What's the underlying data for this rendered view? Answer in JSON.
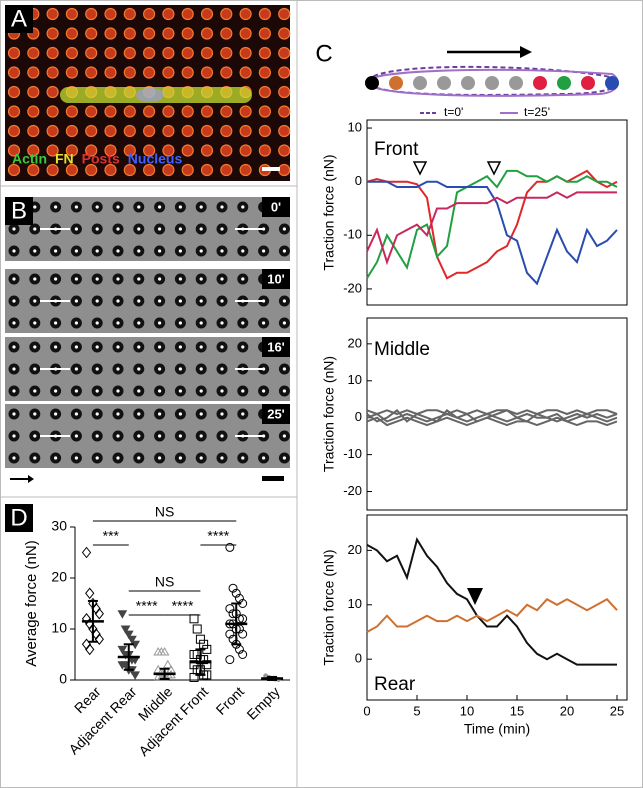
{
  "panels": {
    "a": {
      "label": "A",
      "channels": [
        {
          "name": "Actin",
          "color": "#3cc83c"
        },
        {
          "name": "FN",
          "color": "#e8e02a"
        },
        {
          "name": "Posts",
          "color": "#e03030"
        },
        {
          "name": "Nucleus",
          "color": "#4060ff"
        }
      ]
    },
    "b": {
      "label": "B",
      "times": [
        "0'",
        "10'",
        "16'",
        "25'"
      ]
    },
    "c": {
      "label": "C",
      "legend": [
        {
          "name": "t=0'",
          "color": "#6a3fa0",
          "dashed": true
        },
        {
          "name": "t=25'",
          "color": "#a070c8",
          "dashed": false
        }
      ]
    },
    "d": {
      "label": "D"
    }
  },
  "chart_data": [
    {
      "type": "line",
      "title": "Front",
      "y_label": "Traction force (nN)",
      "x": [
        0,
        1,
        2,
        3,
        4,
        5,
        6,
        7,
        8,
        9,
        10,
        11,
        12,
        13,
        14,
        15,
        16,
        17,
        18,
        19,
        20,
        21,
        22,
        23,
        24,
        25
      ],
      "xlim": [
        0,
        26
      ],
      "ylim": [
        -23,
        11.5
      ],
      "yticks": [
        10,
        0,
        -10,
        -20
      ],
      "series": [
        {
          "name": "red",
          "color": "#e02828",
          "values": [
            0,
            0.5,
            0,
            0,
            0,
            -0.5,
            -3,
            -14,
            -18,
            -17,
            -17,
            -16,
            -15,
            -13,
            -12,
            -8,
            -2,
            0,
            0,
            1,
            0,
            1,
            2,
            0,
            -1,
            0
          ]
        },
        {
          "name": "green",
          "color": "#20a040",
          "values": [
            -18,
            -15,
            -10,
            -13,
            -16,
            -9,
            -8,
            -14,
            -12,
            -2,
            -1,
            0,
            1,
            -1,
            2,
            2,
            1,
            1,
            0,
            1,
            0,
            0,
            1,
            0,
            0,
            -1
          ]
        },
        {
          "name": "blue",
          "color": "#2a4cb0",
          "values": [
            0,
            0,
            0,
            -1,
            -1,
            -1,
            0,
            0,
            -1,
            -1,
            -1,
            -1,
            -1,
            -4,
            -10,
            -11,
            -17,
            -19,
            -14,
            -9,
            -13,
            -15,
            -9,
            -12,
            -11,
            -9
          ]
        },
        {
          "name": "magenta",
          "color": "#c8285a",
          "values": [
            -13,
            -9,
            -15,
            -10,
            -9,
            -8,
            -10,
            -5,
            -5,
            -4,
            -4,
            -4,
            -4,
            -3,
            -4,
            -3,
            -3,
            -3,
            -3,
            -2,
            -3,
            -2,
            -2,
            -2,
            -2,
            -2
          ]
        }
      ]
    },
    {
      "type": "line",
      "title": "Middle",
      "y_label": "Traction force (nN)",
      "x": [
        0,
        1,
        2,
        3,
        4,
        5,
        6,
        7,
        8,
        9,
        10,
        11,
        12,
        13,
        14,
        15,
        16,
        17,
        18,
        19,
        20,
        21,
        22,
        23,
        24,
        25
      ],
      "xlim": [
        0,
        26
      ],
      "ylim": [
        -25,
        27
      ],
      "yticks": [
        20,
        10,
        0,
        -10,
        -20
      ],
      "series": [
        {
          "name": "g1",
          "color": "#666666",
          "values": [
            2,
            1,
            2,
            1,
            2,
            1,
            2,
            2,
            1,
            2,
            1,
            2,
            1,
            2,
            2,
            1,
            2,
            1,
            2,
            2,
            1,
            2,
            1,
            2,
            2,
            1
          ]
        },
        {
          "name": "g2",
          "color": "#666666",
          "values": [
            0,
            1,
            -1,
            0,
            1,
            0,
            -1,
            0,
            1,
            0,
            -1,
            0,
            1,
            0,
            -1,
            0,
            1,
            0,
            0,
            1,
            -1,
            0,
            1,
            0,
            -1,
            0
          ]
        },
        {
          "name": "g3",
          "color": "#666666",
          "values": [
            -1,
            0,
            -2,
            -1,
            0,
            -1,
            -2,
            -1,
            0,
            -1,
            -2,
            -1,
            0,
            -1,
            -2,
            -1,
            -1,
            -2,
            -1,
            0,
            -1,
            -2,
            -1,
            -1,
            -2,
            -1
          ]
        },
        {
          "name": "g4",
          "color": "#666666",
          "values": [
            1,
            -1,
            0,
            2,
            -1,
            1,
            0,
            -1,
            2,
            0,
            1,
            -1,
            0,
            1,
            2,
            0,
            -1,
            1,
            0,
            -1,
            0,
            1,
            0,
            1,
            0,
            1
          ]
        }
      ]
    },
    {
      "type": "line",
      "title": "Rear",
      "y_label": "Traction force (nN)",
      "x_label": "Time (min)",
      "x": [
        0,
        1,
        2,
        3,
        4,
        5,
        6,
        7,
        8,
        9,
        10,
        11,
        12,
        13,
        14,
        15,
        16,
        17,
        18,
        19,
        20,
        21,
        22,
        23,
        24,
        25
      ],
      "xlim": [
        0,
        26
      ],
      "ylim": [
        -7.5,
        26.5
      ],
      "xticks": [
        0,
        5,
        10,
        15,
        20,
        25
      ],
      "yticks": [
        20,
        10,
        0
      ],
      "series": [
        {
          "name": "black",
          "color": "#111111",
          "values": [
            21,
            20,
            18,
            19,
            15,
            22,
            19,
            17,
            14,
            12,
            11,
            8,
            6,
            6,
            8,
            6,
            3,
            1,
            0,
            1,
            0,
            -1,
            -1,
            -1,
            -1,
            -1
          ]
        },
        {
          "name": "orange",
          "color": "#d07030",
          "values": [
            5,
            6,
            8,
            6,
            6,
            7,
            8,
            7,
            7,
            8,
            7,
            8,
            7,
            8,
            9,
            8,
            10,
            9,
            11,
            10,
            11,
            10,
            9,
            10,
            11,
            9
          ]
        }
      ]
    },
    {
      "type": "dot",
      "y_label": "Average force (nN)",
      "categories": [
        "Rear",
        "Adjacent Rear",
        "Middle",
        "Adjacent Front",
        "Front",
        "Empty"
      ],
      "values": [
        11.5,
        4.5,
        1.2,
        3.5,
        11,
        0.3
      ],
      "errors": [
        4,
        2.5,
        1,
        2.5,
        4,
        0.3
      ],
      "markers": [
        "diamond",
        "triangle-down",
        "triangle-up",
        "square",
        "circle",
        "dot"
      ],
      "points": [
        [
          25,
          17,
          15,
          14,
          13,
          12,
          11,
          10,
          9,
          8,
          7,
          6
        ],
        [
          13,
          10,
          9,
          8,
          7,
          6,
          5,
          5,
          4,
          4,
          3,
          3,
          2,
          2,
          1
        ],
        [
          5.5,
          5.5,
          5.5,
          3,
          2,
          2,
          1.5,
          1,
          1,
          1,
          0.5,
          0.5,
          0.5
        ],
        [
          12,
          10,
          8,
          7,
          6,
          5,
          5,
          4,
          4,
          3,
          3,
          2,
          2,
          1,
          1,
          0.5
        ],
        [
          26,
          18,
          17,
          16,
          15,
          14,
          13,
          13,
          12,
          12,
          11,
          11,
          10,
          10,
          9,
          9,
          8,
          7,
          6,
          5,
          4
        ],
        [
          0.8,
          0.5,
          0.3,
          0.2,
          0.1
        ]
      ],
      "ylim": [
        0,
        30
      ],
      "yticks": [
        0,
        10,
        20,
        30
      ],
      "annotations": [
        "NS",
        "***",
        "NS",
        "****",
        "****",
        "****"
      ]
    }
  ]
}
